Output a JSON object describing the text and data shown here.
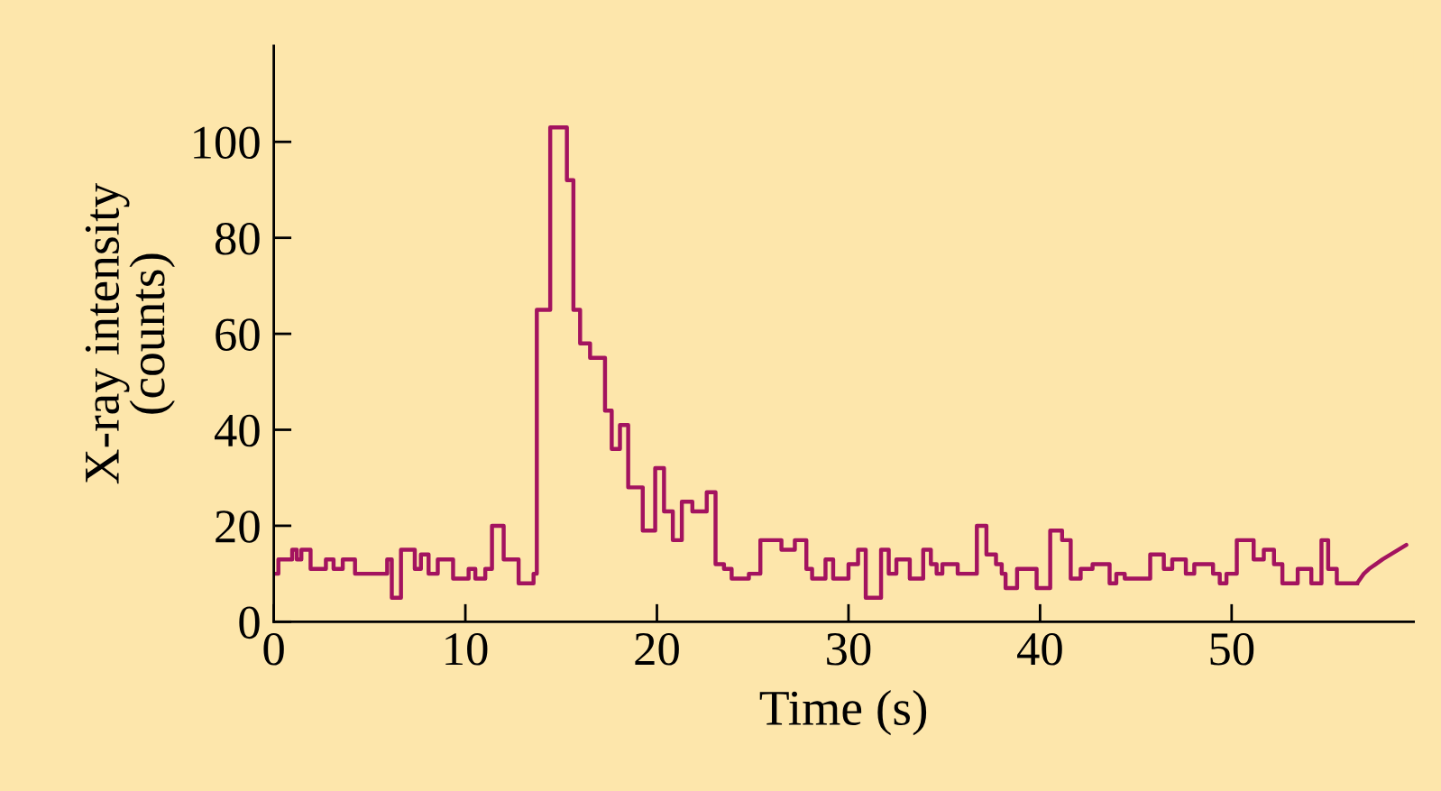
{
  "chart_data": {
    "type": "step",
    "xlabel": "Time (s)",
    "ylabel": "X-ray intensity\n(counts)",
    "xlim": [
      0,
      59.5
    ],
    "ylim": [
      0,
      120
    ],
    "xticks": [
      0,
      10,
      20,
      30,
      40,
      50
    ],
    "yticks": [
      0,
      20,
      40,
      60,
      80,
      100
    ],
    "grid": false,
    "legend": false,
    "series": [
      {
        "color": "#a3135f",
        "x": [
          0,
          0.24,
          0.96,
          1.2,
          1.44,
          1.92,
          2.72,
          3.12,
          3.6,
          4.24,
          5.92,
          6.16,
          6.64,
          7.36,
          7.68,
          8.08,
          8.56,
          9.36,
          10.17,
          10.52,
          11.04,
          11.39,
          12.0,
          12.78,
          13.56,
          13.73,
          14.43,
          15.3,
          15.64,
          15.99,
          16.51,
          17.29,
          17.64,
          18.07,
          18.5,
          19.26,
          19.91,
          20.37,
          20.83,
          21.3,
          21.85,
          22.6,
          23.06,
          23.5,
          23.9,
          24.8,
          25.4,
          26.5,
          27.2,
          27.8,
          28.1,
          28.8,
          29.2,
          30.0,
          30.5,
          30.9,
          31.7,
          32.1,
          32.5,
          33.2,
          33.9,
          34.3,
          34.6,
          34.9,
          35.7,
          36.7,
          37.2,
          37.7,
          38.0,
          38.2,
          38.8,
          39.82,
          40.53,
          41.15,
          41.6,
          42.12,
          42.74,
          43.63,
          43.98,
          44.42,
          45.75,
          46.46,
          46.9,
          47.61,
          48.05,
          49.03,
          49.38,
          49.73,
          50.27,
          51.15,
          51.68,
          52.21,
          52.65,
          53.45,
          54.16,
          54.69,
          55.04,
          55.49,
          56.55
        ],
        "values": [
          10,
          13,
          15,
          13,
          15,
          11,
          13,
          11,
          13,
          10,
          13,
          5,
          15,
          11,
          14,
          10,
          13,
          9,
          11,
          9,
          11,
          20,
          13,
          8,
          10,
          65,
          103,
          92,
          65,
          58,
          55,
          44,
          36,
          41,
          28,
          19,
          32,
          23,
          17,
          25,
          23,
          27,
          12,
          11,
          9,
          10,
          17,
          15,
          17,
          11,
          9,
          13,
          9,
          12,
          15,
          5,
          15,
          10,
          13,
          9,
          15,
          12,
          10,
          12,
          10,
          20,
          14,
          12,
          10,
          7,
          11,
          7,
          19,
          17,
          9,
          11,
          12,
          8,
          10,
          9,
          14,
          11,
          13,
          10,
          12,
          10,
          8,
          10,
          17,
          13,
          15,
          12,
          8,
          11,
          8,
          17,
          11,
          8,
          8
        ]
      },
      {
        "type": "line",
        "color": "#a3135f",
        "x": [
          56.55,
          56.9,
          57.17,
          57.88,
          59.12
        ],
        "values": [
          8,
          10,
          11,
          13,
          16
        ]
      }
    ]
  }
}
